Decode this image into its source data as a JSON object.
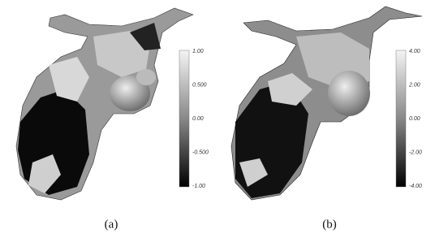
{
  "panels": [
    {
      "caption": "(a)",
      "colorbar_labels": [
        "1.00",
        "0.500",
        "0.00",
        "-0.500",
        "-1.00"
      ]
    },
    {
      "caption": "(b)",
      "colorbar_labels": [
        "4.00",
        "2.00",
        "0.00",
        "-2.00",
        "-4.00"
      ]
    }
  ]
}
